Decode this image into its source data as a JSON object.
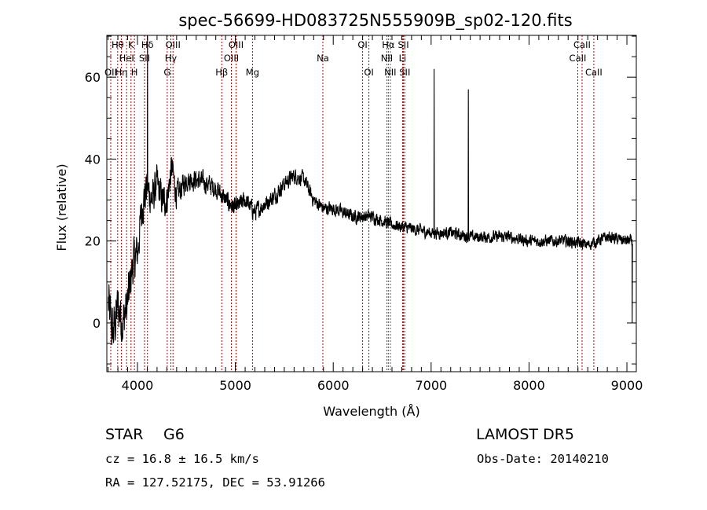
{
  "chart_data": {
    "type": "line",
    "title": "spec-56699-HD083725N555909B_sp02-120.fits",
    "xlabel": "Wavelength (Å)",
    "ylabel": "Flux (relative)",
    "xlim": [
      3687,
      9096
    ],
    "ylim": [
      -11.9,
      70.2
    ],
    "xticks": [
      4000,
      5000,
      6000,
      7000,
      8000,
      9000
    ],
    "yticks": [
      0,
      20,
      40,
      60
    ],
    "continuum": [
      [
        3700,
        5
      ],
      [
        3750,
        -3
      ],
      [
        3800,
        4
      ],
      [
        3850,
        0
      ],
      [
        3900,
        5
      ],
      [
        3950,
        14
      ],
      [
        4000,
        17
      ],
      [
        4050,
        29
      ],
      [
        4100,
        33
      ],
      [
        4150,
        30
      ],
      [
        4200,
        34
      ],
      [
        4250,
        30
      ],
      [
        4300,
        30
      ],
      [
        4350,
        38
      ],
      [
        4400,
        31
      ],
      [
        4450,
        33
      ],
      [
        4500,
        35
      ],
      [
        4600,
        35
      ],
      [
        4700,
        34
      ],
      [
        4800,
        33
      ],
      [
        4900,
        30
      ],
      [
        5000,
        28
      ],
      [
        5100,
        30
      ],
      [
        5200,
        27
      ],
      [
        5300,
        29
      ],
      [
        5400,
        31
      ],
      [
        5500,
        34
      ],
      [
        5600,
        36
      ],
      [
        5700,
        35
      ],
      [
        5800,
        30
      ],
      [
        5900,
        28
      ],
      [
        6000,
        28
      ],
      [
        6200,
        26
      ],
      [
        6400,
        26
      ],
      [
        6600,
        24
      ],
      [
        6800,
        23
      ],
      [
        7000,
        22
      ],
      [
        7200,
        22
      ],
      [
        7400,
        21
      ],
      [
        7600,
        21
      ],
      [
        7800,
        21
      ],
      [
        8000,
        20
      ],
      [
        8200,
        20
      ],
      [
        8400,
        20
      ],
      [
        8600,
        19
      ],
      [
        8800,
        21
      ],
      [
        9000,
        20
      ],
      [
        9060,
        20
      ]
    ],
    "noise": [
      [
        3700,
        10
      ],
      [
        4000,
        8
      ],
      [
        4300,
        6
      ],
      [
        4500,
        4
      ],
      [
        5000,
        3.5
      ],
      [
        6000,
        2.5
      ],
      [
        7000,
        2.2
      ],
      [
        9060,
        2.2
      ]
    ],
    "spikes": [
      [
        4102,
        70
      ],
      [
        7030,
        62
      ],
      [
        7380,
        57
      ],
      [
        9055,
        0
      ]
    ],
    "lines": [
      {
        "label": "OII",
        "wave": 3727,
        "row": 2,
        "color": "#c00000"
      },
      {
        "label": "Hθ",
        "wave": 3798,
        "row": 0,
        "color": "#c00000"
      },
      {
        "label": "Hη",
        "wave": 3835,
        "row": 2,
        "color": "#c00000"
      },
      {
        "label": "HeI",
        "wave": 3889,
        "row": 1,
        "color": "#c00000"
      },
      {
        "label": "K",
        "wave": 3934,
        "row": 0,
        "color": "#c00000"
      },
      {
        "label": "H",
        "wave": 3969,
        "row": 2,
        "color": "#c00000"
      },
      {
        "label": "SII",
        "wave": 4072,
        "row": 1,
        "color": "#c00000"
      },
      {
        "label": "Hδ",
        "wave": 4102,
        "row": 0,
        "color": "#c00000"
      },
      {
        "label": "G",
        "wave": 4304,
        "row": 2,
        "color": "#c00000"
      },
      {
        "label": "Hγ",
        "wave": 4341,
        "row": 1,
        "color": "#c00000"
      },
      {
        "label": "OIII",
        "wave": 4363,
        "row": 0,
        "color": "#c00000"
      },
      {
        "label": "Hβ",
        "wave": 4861,
        "row": 2,
        "color": "#c00000"
      },
      {
        "label": "OIII",
        "wave": 4959,
        "row": 1,
        "color": "#c00000"
      },
      {
        "label": "OIII",
        "wave": 5007,
        "row": 0,
        "color": "#c00000"
      },
      {
        "label": "Mg",
        "wave": 5175,
        "row": 2,
        "color": "#c00000"
      },
      {
        "label": "Na",
        "wave": 5894,
        "row": 1,
        "color": "#c00000"
      },
      {
        "label": "OI",
        "wave": 6300,
        "row": 0,
        "color": "#c00000"
      },
      {
        "label": "OI",
        "wave": 6364,
        "row": 2,
        "color": "#c00000"
      },
      {
        "label": "NII",
        "wave": 6548,
        "row": 1,
        "color": "#555555"
      },
      {
        "label": "Hα",
        "wave": 6563,
        "row": 0,
        "color": "#555555"
      },
      {
        "label": "NII",
        "wave": 6583,
        "row": 2,
        "color": "#555555"
      },
      {
        "label": "Li",
        "wave": 6708,
        "row": 1,
        "color": "#c00000"
      },
      {
        "label": "SII",
        "wave": 6717,
        "row": 0,
        "color": "#c00000"
      },
      {
        "label": "SII",
        "wave": 6731,
        "row": 2,
        "color": "#c00000"
      },
      {
        "label": "CaII",
        "wave": 8498,
        "row": 1,
        "color": "#c00000"
      },
      {
        "label": "CaII",
        "wave": 8542,
        "row": 0,
        "color": "#c00000"
      },
      {
        "label": "CaII",
        "wave": 8662,
        "row": 2,
        "color": "#c00000"
      }
    ]
  },
  "info": {
    "class": "STAR",
    "subclass": "G6",
    "survey": "LAMOST  DR5",
    "cz": "cz = 16.8 ± 16.5 km/s",
    "obs_date": "Obs-Date: 20140210",
    "radec": "RA = 127.52175, DEC =  53.91266"
  }
}
